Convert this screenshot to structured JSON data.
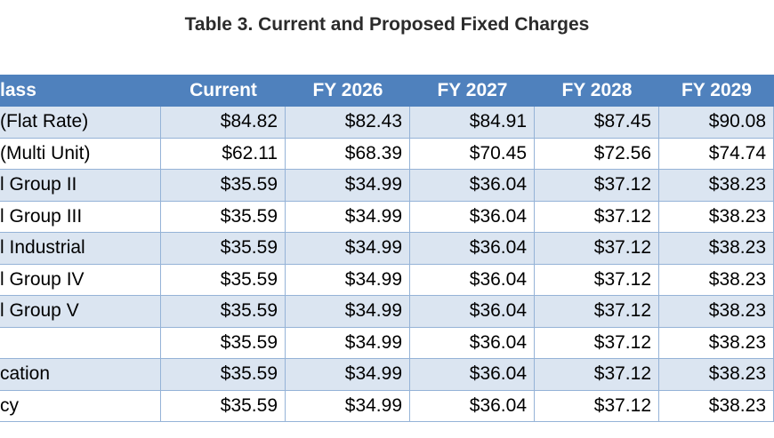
{
  "title": "Table 3. Current and Proposed Fixed Charges",
  "table": {
    "header": [
      "lass",
      "Current",
      "FY 2026",
      "FY 2027",
      "FY 2028",
      "FY 2029"
    ],
    "rows": [
      [
        "(Flat Rate)",
        "$84.82",
        "$82.43",
        "$84.91",
        "$87.45",
        "$90.08"
      ],
      [
        "(Multi Unit)",
        "$62.11",
        "$68.39",
        "$70.45",
        "$72.56",
        "$74.74"
      ],
      [
        "l Group II",
        "$35.59",
        "$34.99",
        "$36.04",
        "$37.12",
        "$38.23"
      ],
      [
        "l Group III",
        "$35.59",
        "$34.99",
        "$36.04",
        "$37.12",
        "$38.23"
      ],
      [
        "l Industrial",
        "$35.59",
        "$34.99",
        "$36.04",
        "$37.12",
        "$38.23"
      ],
      [
        "l Group IV",
        "$35.59",
        "$34.99",
        "$36.04",
        "$37.12",
        "$38.23"
      ],
      [
        "l Group V",
        "$35.59",
        "$34.99",
        "$36.04",
        "$37.12",
        "$38.23"
      ],
      [
        null,
        "$35.59",
        "$34.99",
        "$36.04",
        "$37.12",
        "$38.23"
      ],
      [
        "cation",
        "$35.59",
        "$34.99",
        "$36.04",
        "$37.12",
        "$38.23"
      ],
      [
        "cy",
        "$35.59",
        "$34.99",
        "$36.04",
        "$37.12",
        "$38.23"
      ]
    ]
  }
}
